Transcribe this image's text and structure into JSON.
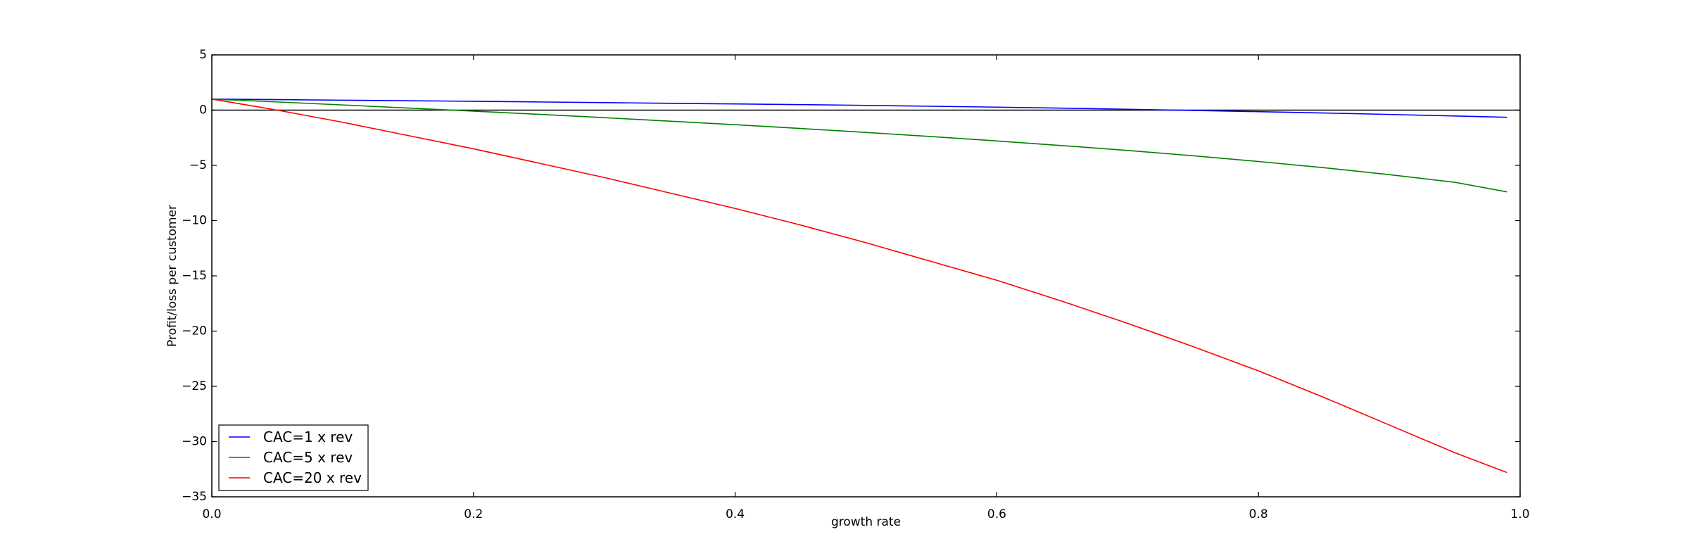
{
  "chart_data": {
    "type": "line",
    "title": "",
    "xlabel": "growth rate",
    "ylabel": "Profit/loss per customer",
    "xlim": [
      0.0,
      1.0
    ],
    "ylim": [
      -35,
      5
    ],
    "xticks": [
      0.0,
      0.2,
      0.4,
      0.6,
      0.8,
      1.0
    ],
    "xtick_labels": [
      "0.0",
      "0.2",
      "0.4",
      "0.6",
      "0.8",
      "1.0"
    ],
    "yticks": [
      5,
      0,
      -5,
      -10,
      -15,
      -20,
      -25,
      -30,
      -35
    ],
    "ytick_labels": [
      "5",
      "0",
      "−5",
      "−10",
      "−15",
      "−20",
      "−25",
      "−30",
      "−35"
    ],
    "grid": false,
    "legend_position": "lower-left",
    "reference_line": {
      "y": 0,
      "color": "#000000"
    },
    "x": [
      0.0,
      0.05,
      0.1,
      0.15,
      0.2,
      0.25,
      0.3,
      0.35,
      0.4,
      0.45,
      0.5,
      0.55,
      0.6,
      0.65,
      0.7,
      0.75,
      0.8,
      0.85,
      0.9,
      0.95,
      0.99
    ],
    "series": [
      {
        "name": "CAC=1 x rev",
        "color": "#0000ff",
        "values": [
          1.0,
          0.95,
          0.9,
          0.85,
          0.8,
          0.74,
          0.68,
          0.62,
          0.56,
          0.5,
          0.43,
          0.35,
          0.27,
          0.18,
          0.08,
          -0.03,
          -0.14,
          -0.26,
          -0.39,
          -0.53,
          -0.65
        ]
      },
      {
        "name": "CAC=5 x rev",
        "color": "#008000",
        "values": [
          1.0,
          0.74,
          0.47,
          0.19,
          -0.09,
          -0.38,
          -0.68,
          -1.0,
          -1.32,
          -1.66,
          -2.02,
          -2.39,
          -2.79,
          -3.21,
          -3.65,
          -4.13,
          -4.65,
          -5.21,
          -5.84,
          -6.53,
          -7.4
        ]
      },
      {
        "name": "CAC=20 x rev",
        "color": "#ff0000",
        "values": [
          1.0,
          0.0,
          -1.1,
          -2.3,
          -3.5,
          -4.8,
          -6.1,
          -7.5,
          -8.9,
          -10.4,
          -12.0,
          -13.7,
          -15.4,
          -17.3,
          -19.3,
          -21.4,
          -23.6,
          -26.0,
          -28.5,
          -31.0,
          -32.8
        ]
      }
    ]
  }
}
